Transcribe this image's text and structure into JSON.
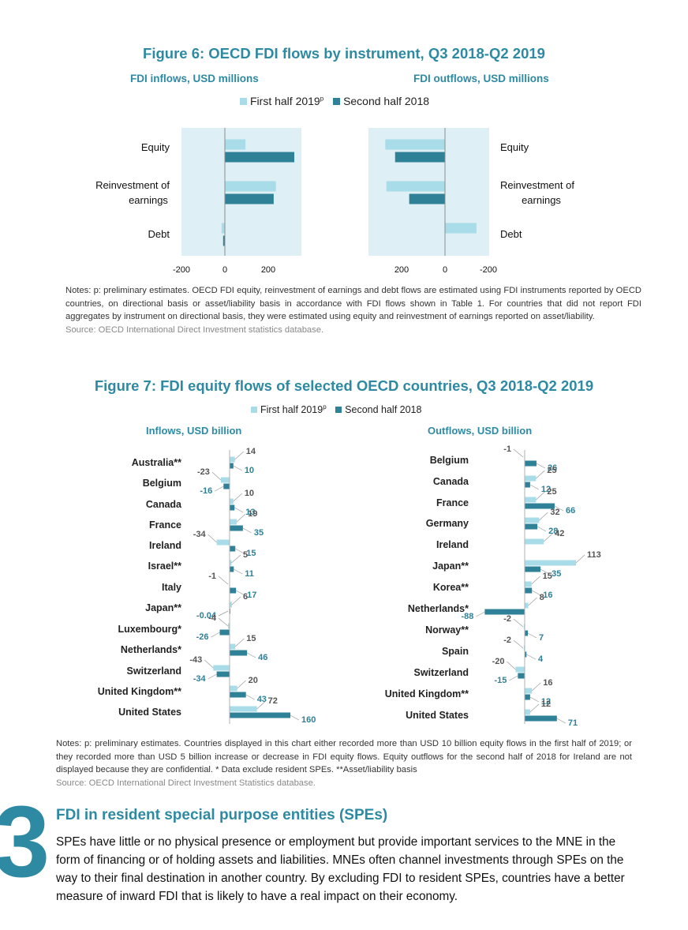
{
  "colors": {
    "first_half": "#a8dce8",
    "second_half": "#2e8197",
    "accent": "#2e8aa3",
    "panel": "#deeff5"
  },
  "figure6": {
    "title": "Figure 6: OECD FDI flows by instrument, Q3 2018-Q2 2019",
    "inflows_subtitle": "FDI inflows, USD millions",
    "outflows_subtitle": "FDI outflows, USD millions",
    "legend": {
      "first": "First half 2019",
      "sup": "p",
      "second": "Second half 2018"
    },
    "left_labels": [
      "Equity",
      "Reinvestment of earnings",
      "Debt"
    ],
    "right_labels": [
      "Equity",
      "Reinvestment of earnings",
      "Debt"
    ],
    "notes": "Notes: p: preliminary estimates. OECD FDI equity, reinvestment of earnings and debt flows are estimated using FDI instruments reported by OECD countries, on directional basis or asset/liability basis in accordance with FDI flows shown in Table 1. For countries that did not report FDI aggregates by instrument on directional basis, they were estimated using equity and reinvestment of earnings reported on asset/liability.",
    "source": "Source: OECD International Direct Investment statistics database."
  },
  "figure7": {
    "title": "Figure 7: FDI equity flows of selected OECD countries, Q3 2018-Q2 2019",
    "legend": {
      "first": "First half 2019",
      "sup": "p",
      "second": "Second half 2018"
    },
    "inflows_subtitle": "Inflows, USD billion",
    "outflows_subtitle": "Outflows, USD billion",
    "notes": "Notes: p: preliminary estimates. Countries displayed in this chart either recorded more than USD 10 billion equity flows in the first half of 2019; or they recorded more than USD 5 billion increase or decrease in FDI equity flows. Equity outflows for the second half of 2018 for Ireland are not displayed because they are confidential. * Data exclude resident SPEs. **Asset/liability basis",
    "source": "Source: OECD International Direct Investment Statistics database."
  },
  "chart_data": [
    {
      "type": "bar",
      "orientation": "horizontal",
      "panel": "FDI inflows, USD millions",
      "categories": [
        "Equity",
        "Reinvestment of earnings",
        "Debt"
      ],
      "series": [
        {
          "name": "First half 2019p",
          "values": [
            95,
            235,
            -15
          ]
        },
        {
          "name": "Second half 2018",
          "values": [
            320,
            225,
            -8
          ]
        }
      ],
      "xlim": [
        -200,
        300
      ],
      "xticks": [
        "-200",
        "0",
        "200"
      ]
    },
    {
      "type": "bar",
      "orientation": "horizontal",
      "axis_reversed": true,
      "panel": "FDI outflows, USD millions",
      "categories": [
        "Equity",
        "Reinvestment of earnings",
        "Debt"
      ],
      "series": [
        {
          "name": "First half 2019p",
          "values": [
            275,
            270,
            -145
          ]
        },
        {
          "name": "Second half 2018",
          "values": [
            230,
            165,
            0
          ]
        }
      ],
      "xlim": [
        -200,
        350
      ],
      "xticks": [
        "200",
        "0",
        "-200"
      ]
    },
    {
      "type": "bar",
      "orientation": "horizontal",
      "panel": "Inflows, USD billion",
      "categories": [
        "Australia**",
        "Belgium",
        "Canada",
        "France",
        "Ireland",
        "Israel**",
        "Italy",
        "Japan**",
        "Luxembourg*",
        "Netherlands*",
        "Switzerland",
        "United Kingdom**",
        "United States"
      ],
      "series": [
        {
          "name": "First half 2019p",
          "values": [
            14,
            -23,
            10,
            19,
            -34,
            5,
            -1,
            6,
            -4,
            15,
            -43,
            20,
            72
          ],
          "labels": [
            "14",
            "-23",
            "10",
            "19",
            "-34",
            "5",
            "-1",
            "6",
            "-4",
            "15",
            "-43",
            "20",
            "72"
          ]
        },
        {
          "name": "Second half 2018",
          "values": [
            10,
            -16,
            13,
            35,
            15,
            11,
            17,
            -0.04,
            -26,
            46,
            -34,
            43,
            160
          ],
          "labels": [
            "10",
            "-16",
            "13",
            "35",
            "15",
            "11",
            "17",
            "-0.04",
            "-26",
            "46",
            "-34",
            "43",
            "160"
          ]
        }
      ]
    },
    {
      "type": "bar",
      "orientation": "horizontal",
      "panel": "Outflows, USD billion",
      "categories": [
        "Belgium",
        "Canada",
        "France",
        "Germany",
        "Ireland",
        "Japan**",
        "Korea**",
        "Netherlands*",
        "Norway**",
        "Spain",
        "Switzerland",
        "United Kingdom**",
        "United States"
      ],
      "series": [
        {
          "name": "First half 2019p",
          "values": [
            -1,
            25,
            25,
            32,
            42,
            113,
            15,
            8,
            -2,
            -2,
            -20,
            16,
            12
          ],
          "labels": [
            "-1",
            "25",
            "25",
            "32",
            "42",
            "113",
            "15",
            "8",
            "-2",
            "-2",
            "-20",
            "16",
            "12"
          ]
        },
        {
          "name": "Second half 2018",
          "values": [
            26,
            12,
            66,
            28,
            null,
            35,
            16,
            -88,
            7,
            4,
            -15,
            12,
            71
          ],
          "labels": [
            "26",
            "12",
            "66",
            "28",
            "",
            "35",
            "16",
            "-88",
            "7",
            "4",
            "-15",
            "12",
            "71"
          ]
        }
      ]
    }
  ],
  "section": {
    "number": "3",
    "title": "FDI in resident special purpose entities (SPEs)",
    "body": "SPEs have little or no physical presence or employment but provide important services to the MNE in the form of financing or of holding assets and liabilities. MNEs often channel investments through SPEs on the way to their final destination in another country. By excluding FDI to resident SPEs, countries have a better measure of inward FDI that is likely to have a real impact on their economy."
  }
}
